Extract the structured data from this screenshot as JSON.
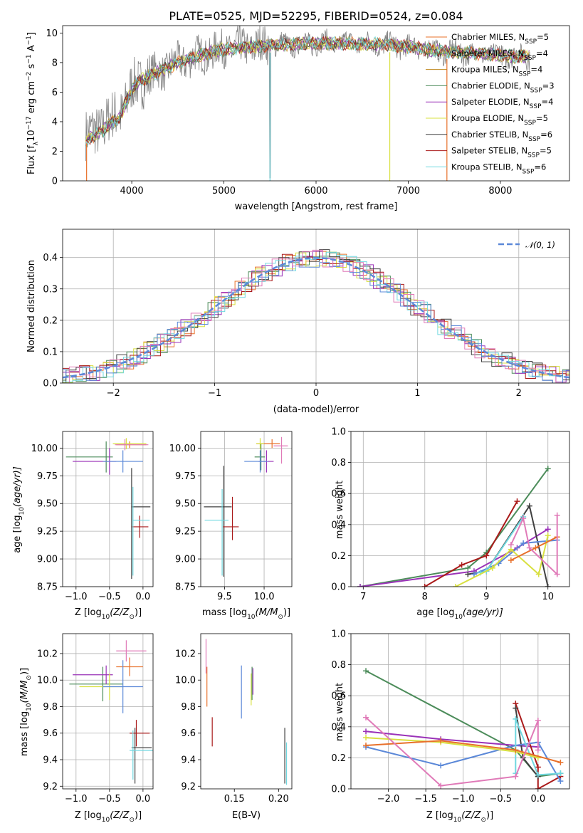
{
  "colors": {
    "orange": "#e8702a",
    "green": "#4c8c5a",
    "purple": "#9a32b8",
    "yellow": "#d8e040",
    "dark": "#404040",
    "red": "#aa1a1a",
    "cyan": "#70d8e0",
    "blue": "#5b88d8",
    "pink": "#e07ab8",
    "gray": "#808080"
  },
  "chart_data": [
    {
      "id": "spectrum",
      "type": "line",
      "title": "PLATE=0525, MJD=52295, FIBERID=0524, z=0.084",
      "xlabel": "wavelength [Angstrom, rest frame]",
      "ylabel_parts": [
        "Flux [f",
        "λ",
        "10",
        "−17",
        " erg cm",
        "−2",
        " s",
        "−1",
        " A",
        "−1",
        "]"
      ],
      "xlim": [
        3250,
        8750
      ],
      "ylim": [
        0,
        10.5
      ],
      "xticks": [
        4000,
        5000,
        6000,
        7000,
        8000
      ],
      "yticks": [
        0,
        2,
        4,
        6,
        8,
        10
      ],
      "legend_position": "right",
      "continuum_anchors": {
        "x": [
          3500,
          3700,
          3900,
          4000,
          4100,
          4300,
          4500,
          4800,
          5000,
          5300,
          5600,
          6000,
          6400,
          6800,
          7100,
          7300,
          7500,
          7800,
          8000,
          8200
        ],
        "y": [
          3.0,
          3.8,
          4.8,
          6.2,
          6.8,
          7.4,
          8.0,
          8.6,
          8.9,
          9.1,
          9.2,
          9.3,
          9.3,
          9.2,
          9.0,
          8.8,
          8.7,
          8.6,
          8.5,
          8.4
        ]
      },
      "series": [
        {
          "name": "Chabrier MILES",
          "nssp": "5",
          "color": "#e8702a"
        },
        {
          "name": "Salpeter MILES",
          "nssp": "4",
          "color": "#4c8c5a"
        },
        {
          "name": "Kroupa MILES",
          "nssp": "4",
          "color": "#c08a20"
        },
        {
          "name": "Chabrier ELODIE",
          "nssp": "3",
          "color": "#4c8c5a"
        },
        {
          "name": "Salpeter ELODIE",
          "nssp": "4",
          "color": "#9a32b8"
        },
        {
          "name": "Kroupa ELODIE",
          "nssp": "5",
          "color": "#d8e040"
        },
        {
          "name": "Chabrier STELIB",
          "nssp": "6",
          "color": "#404040"
        },
        {
          "name": "Salpeter STELIB",
          "nssp": "5",
          "color": "#aa1a1a"
        },
        {
          "name": "Kroupa STELIB",
          "nssp": "6",
          "color": "#70d8e0"
        }
      ]
    },
    {
      "id": "residuals",
      "type": "line",
      "xlabel": "(data-model)/error",
      "ylabel": "Normed distribution",
      "xlim": [
        -2.5,
        2.5
      ],
      "ylim": [
        0,
        0.49
      ],
      "xticks": [
        -2,
        -1,
        0,
        1,
        2
      ],
      "yticks": [
        0.0,
        0.1,
        0.2,
        0.3,
        0.4
      ],
      "legend_label": "𝒩(0, 1)",
      "bin_width": 0.1,
      "histogram_colors": [
        "#e8702a",
        "#4c8c5a",
        "#9a32b8",
        "#d8e040",
        "#404040",
        "#aa1a1a",
        "#70d8e0",
        "#5b88d8",
        "#e07ab8"
      ]
    },
    {
      "id": "age_vs_Z",
      "type": "scatter",
      "xlabel_parts": [
        "Z [log",
        "10",
        "(Z/Z",
        "⊙",
        ")]"
      ],
      "ylabel_parts": [
        "age  [log",
        "10",
        "(age/yr)]"
      ],
      "xlim": [
        -1.2,
        0.15
      ],
      "ylim": [
        8.75,
        10.15
      ],
      "xticks": [
        -1.0,
        -0.5,
        0.0
      ],
      "yticks": [
        8.75,
        9.0,
        9.25,
        9.5,
        9.75,
        10.0
      ],
      "points": [
        {
          "x": -0.2,
          "y": 10.03,
          "xerr": [
            0.2,
            0.25
          ],
          "yerr": [
            0.03,
            0.03
          ],
          "color": "#e8702a"
        },
        {
          "x": -0.55,
          "y": 9.92,
          "xerr": [
            0.6,
            0.1
          ],
          "yerr": [
            0.14,
            0.14
          ],
          "color": "#4c8c5a"
        },
        {
          "x": -0.5,
          "y": 9.88,
          "xerr": [
            0.55,
            0.1
          ],
          "yerr": [
            0.12,
            0.12
          ],
          "color": "#9a32b8"
        },
        {
          "x": -0.25,
          "y": 10.04,
          "xerr": [
            0.2,
            0.3
          ],
          "yerr": [
            0.05,
            0.05
          ],
          "color": "#d8e040"
        },
        {
          "x": -0.17,
          "y": 9.47,
          "xerr": [
            0.0,
            0.28
          ],
          "yerr": [
            0.65,
            0.35
          ],
          "color": "#404040"
        },
        {
          "x": -0.05,
          "y": 9.29,
          "xerr": [
            0.12,
            0.13
          ],
          "yerr": [
            0.1,
            0.1
          ],
          "color": "#aa1a1a"
        },
        {
          "x": -0.15,
          "y": 9.35,
          "xerr": [
            0.0,
            0.25
          ],
          "yerr": [
            0.5,
            0.3
          ],
          "color": "#70d8e0"
        },
        {
          "x": -0.3,
          "y": 9.88,
          "xerr": [
            0.3,
            0.3
          ],
          "yerr": [
            0.1,
            0.1
          ],
          "color": "#5b88d8"
        },
        {
          "x": -0.27,
          "y": 10.03,
          "xerr": [
            0.15,
            0.35
          ],
          "yerr": [
            0.05,
            0.05
          ],
          "color": "#e07ab8"
        }
      ]
    },
    {
      "id": "age_vs_mass",
      "type": "scatter",
      "xlabel_parts": [
        "mass [log",
        "10",
        "(M/M",
        "⊙",
        ")]"
      ],
      "xlim": [
        9.2,
        10.35
      ],
      "ylim": [
        8.75,
        10.15
      ],
      "xticks": [
        9.5,
        10.0
      ],
      "yticks": [
        8.75,
        9.0,
        9.25,
        9.5,
        9.75,
        10.0
      ],
      "points": [
        {
          "x": 10.1,
          "y": 10.04,
          "xerr": [
            0.2,
            0.1
          ],
          "yerr": [
            0.04,
            0.04
          ],
          "color": "#e8702a"
        },
        {
          "x": 9.96,
          "y": 9.92,
          "xerr": [
            0.08,
            0.05
          ],
          "yerr": [
            0.12,
            0.12
          ],
          "color": "#4c8c5a"
        },
        {
          "x": 10.03,
          "y": 9.88,
          "xerr": [
            0.1,
            0.09
          ],
          "yerr": [
            0.1,
            0.1
          ],
          "color": "#9a32b8"
        },
        {
          "x": 9.95,
          "y": 10.04,
          "xerr": [
            0.05,
            0.05
          ],
          "yerr": [
            0.05,
            0.05
          ],
          "color": "#d8e040"
        },
        {
          "x": 9.49,
          "y": 9.47,
          "xerr": [
            0.25,
            0.1
          ],
          "yerr": [
            0.63,
            0.37
          ],
          "color": "#404040"
        },
        {
          "x": 9.6,
          "y": 9.29,
          "xerr": [
            0.12,
            0.08
          ],
          "yerr": [
            0.12,
            0.27
          ],
          "color": "#aa1a1a"
        },
        {
          "x": 9.47,
          "y": 9.35,
          "xerr": [
            0.22,
            0.08
          ],
          "yerr": [
            0.5,
            0.28
          ],
          "color": "#70d8e0"
        },
        {
          "x": 9.95,
          "y": 9.88,
          "xerr": [
            0.2,
            0.1
          ],
          "yerr": [
            0.1,
            0.1
          ],
          "color": "#5b88d8"
        },
        {
          "x": 10.22,
          "y": 10.02,
          "xerr": [
            0.1,
            0.08
          ],
          "yerr": [
            0.16,
            0.08
          ],
          "color": "#e07ab8"
        }
      ]
    },
    {
      "id": "weight_vs_age",
      "type": "line",
      "xlabel_parts": [
        "age  [log",
        "10",
        "(age/yr)]"
      ],
      "ylabel": "mass weight",
      "xlim": [
        6.8,
        10.35
      ],
      "ylim": [
        0,
        1.0
      ],
      "xticks": [
        7,
        8,
        9,
        10
      ],
      "yticks": [
        0.0,
        0.2,
        0.4,
        0.6,
        0.8,
        1.0
      ],
      "series": [
        {
          "color": "#4c8c5a",
          "x": [
            6.95,
            8.7,
            9.0,
            10.0
          ],
          "y": [
            0.0,
            0.12,
            0.22,
            0.76
          ]
        },
        {
          "color": "#9a32b8",
          "x": [
            6.95,
            8.8,
            9.5,
            10.0
          ],
          "y": [
            0.0,
            0.1,
            0.25,
            0.37
          ]
        },
        {
          "color": "#aa1a1a",
          "x": [
            8.0,
            8.6,
            9.0,
            9.5
          ],
          "y": [
            0.0,
            0.14,
            0.2,
            0.55
          ]
        },
        {
          "color": "#404040",
          "x": [
            8.7,
            9.0,
            9.7,
            10.0
          ],
          "y": [
            0.08,
            0.1,
            0.52,
            0.0
          ]
        },
        {
          "color": "#5b88d8",
          "x": [
            8.8,
            9.2,
            9.6,
            10.15
          ],
          "y": [
            0.08,
            0.15,
            0.28,
            0.3
          ]
        },
        {
          "color": "#70d8e0",
          "x": [
            8.9,
            9.0,
            9.6
          ],
          "y": [
            0.09,
            0.1,
            0.45
          ]
        },
        {
          "color": "#d8e040",
          "x": [
            8.5,
            9.1,
            9.4,
            9.85,
            10.0
          ],
          "y": [
            0.0,
            0.12,
            0.24,
            0.08,
            0.33
          ]
        },
        {
          "color": "#e8702a",
          "x": [
            9.4,
            9.8,
            10.15
          ],
          "y": [
            0.17,
            0.25,
            0.32
          ]
        },
        {
          "color": "#e07ab8",
          "x": [
            9.4,
            9.6,
            9.7,
            10.15,
            10.15
          ],
          "y": [
            0.27,
            0.44,
            0.25,
            0.08,
            0.46
          ]
        }
      ]
    },
    {
      "id": "mass_vs_Z",
      "type": "scatter",
      "xlabel_parts": [
        "Z [log",
        "10",
        "(Z/Z",
        "⊙",
        ")]"
      ],
      "ylabel_parts": [
        "mass [log",
        "10",
        "(M/M",
        "⊙",
        ")]"
      ],
      "xlim": [
        -1.2,
        0.15
      ],
      "ylim": [
        9.18,
        10.35
      ],
      "xticks": [
        -1.0,
        -0.5,
        0.0
      ],
      "yticks": [
        9.2,
        9.4,
        9.6,
        9.8,
        10.0,
        10.2
      ],
      "points": [
        {
          "x": -0.2,
          "y": 10.1,
          "xerr": [
            0.2,
            0.2
          ],
          "yerr": [
            0.07,
            0.07
          ],
          "color": "#e8702a"
        },
        {
          "x": -0.6,
          "y": 9.97,
          "xerr": [
            0.5,
            0.3
          ],
          "yerr": [
            0.13,
            0.13
          ],
          "color": "#4c8c5a"
        },
        {
          "x": -0.55,
          "y": 10.04,
          "xerr": [
            0.5,
            0.1
          ],
          "yerr": [
            0.07,
            0.07
          ],
          "color": "#9a32b8"
        },
        {
          "x": -0.5,
          "y": 9.95,
          "xerr": [
            0.45,
            0.2
          ],
          "yerr": [
            0.1,
            0.1
          ],
          "color": "#d8e040"
        },
        {
          "x": -0.12,
          "y": 9.49,
          "xerr": [
            0.05,
            0.25
          ],
          "yerr": [
            0.27,
            0.15
          ],
          "color": "#404040"
        },
        {
          "x": -0.1,
          "y": 9.6,
          "xerr": [
            0.1,
            0.2
          ],
          "yerr": [
            0.1,
            0.1
          ],
          "color": "#aa1a1a"
        },
        {
          "x": -0.15,
          "y": 9.47,
          "xerr": [
            0.05,
            0.3
          ],
          "yerr": [
            0.22,
            0.15
          ],
          "color": "#70d8e0"
        },
        {
          "x": -0.3,
          "y": 9.95,
          "xerr": [
            0.3,
            0.3
          ],
          "yerr": [
            0.2,
            0.2
          ],
          "color": "#5b88d8"
        },
        {
          "x": -0.25,
          "y": 10.22,
          "xerr": [
            0.15,
            0.3
          ],
          "yerr": [
            0.08,
            0.08
          ],
          "color": "#e07ab8"
        }
      ]
    },
    {
      "id": "mass_vs_EBV",
      "type": "scatter",
      "xlabel": "E(B-V)",
      "xlim": [
        0.112,
        0.215
      ],
      "ylim": [
        9.18,
        10.35
      ],
      "xticks": [
        0.15,
        0.2
      ],
      "yticks": [
        9.2,
        9.4,
        9.6,
        9.8,
        10.0,
        10.2
      ],
      "points": [
        {
          "x": 0.119,
          "y": 9.95,
          "yerr": [
            0.15,
            0.15
          ],
          "color": "#e8702a"
        },
        {
          "x": 0.17,
          "y": 9.95,
          "yerr": [
            0.1,
            0.15
          ],
          "color": "#4c8c5a"
        },
        {
          "x": 0.171,
          "y": 9.99,
          "yerr": [
            0.1,
            0.1
          ],
          "color": "#9a32b8"
        },
        {
          "x": 0.169,
          "y": 9.93,
          "yerr": [
            0.12,
            0.12
          ],
          "color": "#d8e040"
        },
        {
          "x": 0.207,
          "y": 9.44,
          "yerr": [
            0.22,
            0.2
          ],
          "color": "#404040"
        },
        {
          "x": 0.125,
          "y": 9.61,
          "yerr": [
            0.11,
            0.11
          ],
          "color": "#aa1a1a"
        },
        {
          "x": 0.209,
          "y": 9.36,
          "yerr": [
            0.15,
            0.17
          ],
          "color": "#70d8e0"
        },
        {
          "x": 0.158,
          "y": 9.91,
          "yerr": [
            0.2,
            0.2
          ],
          "color": "#5b88d8"
        },
        {
          "x": 0.118,
          "y": 10.18,
          "yerr": [
            0.13,
            0.13
          ],
          "color": "#e07ab8"
        }
      ]
    },
    {
      "id": "weight_vs_Z",
      "type": "line",
      "xlabel_parts": [
        "Z [log",
        "10",
        "(Z/Z",
        "⊙",
        ")]"
      ],
      "ylabel": "mass weight",
      "xlim": [
        -2.5,
        0.42
      ],
      "ylim": [
        0,
        1.0
      ],
      "xticks": [
        -2.0,
        -1.5,
        -1.0,
        -0.5,
        0.0
      ],
      "yticks": [
        0.0,
        0.2,
        0.4,
        0.6,
        0.8,
        1.0
      ],
      "series": [
        {
          "color": "#4c8c5a",
          "x": [
            -2.3,
            -0.3,
            0.0,
            0.3
          ],
          "y": [
            0.76,
            0.25,
            0.08,
            0.1
          ]
        },
        {
          "color": "#9a32b8",
          "x": [
            -2.3,
            -1.3,
            -0.3,
            0.0
          ],
          "y": [
            0.37,
            0.32,
            0.28,
            0.27
          ]
        },
        {
          "color": "#aa1a1a",
          "x": [
            -0.3,
            0.0,
            0.0,
            0.3
          ],
          "y": [
            0.55,
            0.14,
            0.0,
            0.08
          ]
        },
        {
          "color": "#404040",
          "x": [
            -0.3,
            -0.2,
            0.0
          ],
          "y": [
            0.52,
            0.2,
            0.08
          ]
        },
        {
          "color": "#5b88d8",
          "x": [
            -2.3,
            -1.3,
            -0.3,
            0.0,
            0.3
          ],
          "y": [
            0.27,
            0.15,
            0.28,
            0.3,
            0.05
          ]
        },
        {
          "color": "#70d8e0",
          "x": [
            -0.3,
            -0.3,
            0.0,
            0.3
          ],
          "y": [
            0.1,
            0.45,
            0.09,
            0.1
          ]
        },
        {
          "color": "#d8e040",
          "x": [
            -2.3,
            -1.3,
            -0.3,
            0.0
          ],
          "y": [
            0.33,
            0.3,
            0.24,
            0.2
          ]
        },
        {
          "color": "#e8702a",
          "x": [
            -2.3,
            -1.3,
            -0.3,
            0.3
          ],
          "y": [
            0.28,
            0.31,
            0.25,
            0.17
          ]
        },
        {
          "color": "#e07ab8",
          "x": [
            -2.3,
            -1.3,
            -0.3,
            0.0,
            0.0
          ],
          "y": [
            0.46,
            0.02,
            0.08,
            0.44,
            0.25
          ]
        }
      ]
    }
  ]
}
